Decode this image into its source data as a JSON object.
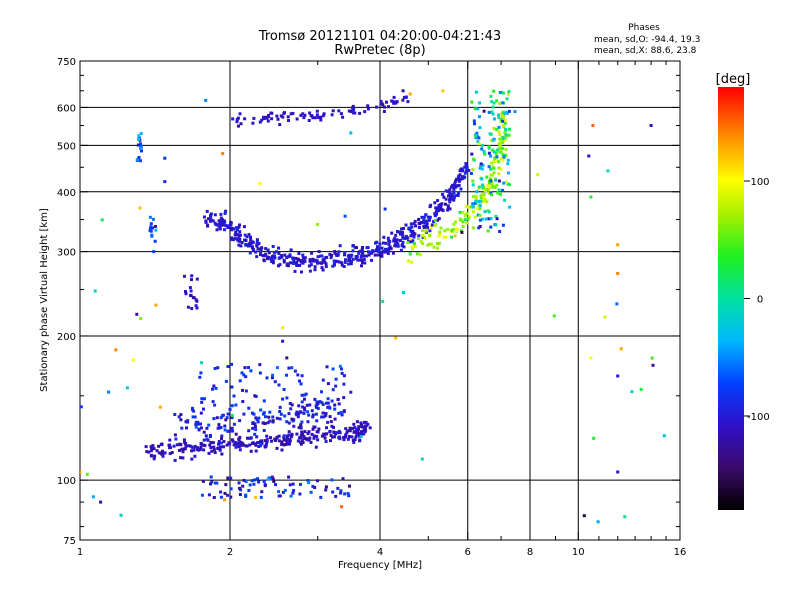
{
  "chart_data": {
    "type": "scatter",
    "title": "Tromsø 20121101 04:20:00-04:21:43",
    "subtitle": "RwPretec (8p)",
    "xlabel": "Frequency [MHz]",
    "ylabel": "Stationary phase Virtual Height [km]",
    "x_scale": "log",
    "y_scale": "log",
    "xlim": [
      1,
      16
    ],
    "ylim": [
      75,
      750
    ],
    "x_ticks": [
      1,
      2,
      4,
      6,
      8,
      10,
      16
    ],
    "x_gridlines": [
      2,
      4,
      6,
      8,
      10
    ],
    "y_ticks": [
      75,
      100,
      200,
      300,
      400,
      500,
      600,
      750
    ],
    "y_gridlines": [
      100,
      200,
      300,
      400,
      500,
      600
    ],
    "grid": true,
    "stats": {
      "heading": "Phases",
      "lines": [
        "mean, sd,O: -94.4, 19.3",
        "mean, sd,X:  88.6, 23.8"
      ]
    },
    "colorbar": {
      "label": "[deg]",
      "range": [
        -180,
        180
      ],
      "ticks": [
        100,
        0,
        -100
      ]
    },
    "clusters": [
      {
        "name": "F2-O trace",
        "n": 520,
        "type": "curve",
        "pts": [
          [
            1.78,
            350
          ],
          [
            1.9,
            345
          ],
          [
            2.05,
            330
          ],
          [
            2.2,
            310
          ],
          [
            2.4,
            295
          ],
          [
            2.6,
            288
          ],
          [
            2.8,
            285
          ],
          [
            3.0,
            287
          ],
          [
            3.3,
            290
          ],
          [
            3.6,
            295
          ],
          [
            3.9,
            300
          ],
          [
            4.2,
            310
          ],
          [
            4.5,
            322
          ],
          [
            4.8,
            338
          ],
          [
            5.1,
            355
          ],
          [
            5.4,
            380
          ],
          [
            5.7,
            410
          ],
          [
            5.95,
            450
          ]
        ],
        "yspread": 0.045,
        "phase": -103,
        "psd": 14
      },
      {
        "name": "F2-X trace",
        "n": 180,
        "type": "curve",
        "pts": [
          [
            4.6,
            305
          ],
          [
            5.0,
            318
          ],
          [
            5.4,
            332
          ],
          [
            5.8,
            348
          ],
          [
            6.1,
            365
          ],
          [
            6.3,
            382
          ],
          [
            6.6,
            402
          ],
          [
            6.8,
            430
          ],
          [
            7.0,
            470
          ],
          [
            7.1,
            520
          ],
          [
            7.05,
            580
          ]
        ],
        "yspread": 0.05,
        "phase": 70,
        "psd": 30
      },
      {
        "name": "upper trace",
        "n": 90,
        "type": "curve",
        "pts": [
          [
            2.0,
            560
          ],
          [
            2.3,
            570
          ],
          [
            2.6,
            572
          ],
          [
            3.0,
            575
          ],
          [
            3.4,
            585
          ],
          [
            3.8,
            595
          ],
          [
            4.2,
            605
          ],
          [
            4.6,
            625
          ]
        ],
        "yspread": 0.025,
        "phase": -108,
        "psd": 10
      },
      {
        "name": "cusp column",
        "n": 140,
        "type": "box",
        "x": [
          6.1,
          7.3
        ],
        "y": [
          330,
          650
        ],
        "phase": -10,
        "psd": 85
      },
      {
        "name": "E trace lower",
        "n": 300,
        "type": "curve",
        "pts": [
          [
            1.35,
            115
          ],
          [
            1.55,
            116
          ],
          [
            1.75,
            117
          ],
          [
            1.95,
            118
          ],
          [
            2.2,
            119
          ],
          [
            2.5,
            121
          ],
          [
            2.8,
            123
          ],
          [
            3.1,
            124
          ],
          [
            3.5,
            126
          ],
          [
            3.75,
            128
          ]
        ],
        "yspread": 0.035,
        "phase": -112,
        "psd": 12
      },
      {
        "name": "E trace upper",
        "n": 160,
        "type": "curve",
        "pts": [
          [
            1.55,
            132
          ],
          [
            1.8,
            130
          ],
          [
            2.1,
            129
          ],
          [
            2.4,
            132
          ],
          [
            2.7,
            136
          ],
          [
            3.0,
            140
          ],
          [
            3.4,
            145
          ]
        ],
        "yspread": 0.07,
        "phase": -95,
        "psd": 25
      },
      {
        "name": "E scatter",
        "n": 90,
        "type": "box",
        "x": [
          1.7,
          3.5
        ],
        "y": [
          135,
          175
        ],
        "phase": -90,
        "psd": 25
      },
      {
        "name": "low 100 km",
        "n": 80,
        "type": "box",
        "x": [
          1.75,
          3.5
        ],
        "y": [
          92,
          102
        ],
        "phase": -95,
        "psd": 45
      },
      {
        "name": "1.4 MHz column",
        "n": 14,
        "type": "box",
        "x": [
          1.38,
          1.42
        ],
        "y": [
          300,
          360
        ],
        "phase": -70,
        "psd": 30
      },
      {
        "name": "1.3 MHz column",
        "n": 18,
        "type": "box",
        "x": [
          1.3,
          1.33
        ],
        "y": [
          460,
          530
        ],
        "phase": -60,
        "psd": 40
      },
      {
        "name": "1.65 MHz cluster",
        "n": 18,
        "type": "box",
        "x": [
          1.62,
          1.72
        ],
        "y": [
          228,
          270
        ],
        "phase": -110,
        "psd": 12
      },
      {
        "name": "stray",
        "n": 40,
        "type": "box",
        "x": [
          1.0,
          15.0
        ],
        "y": [
          80,
          650
        ],
        "phase": 0,
        "psd": 110
      }
    ],
    "points": [
      [
        1.48,
        420,
        -90
      ],
      [
        1.48,
        470,
        -80
      ],
      [
        1.32,
        370,
        120
      ],
      [
        1.3,
        222,
        -110
      ],
      [
        1.42,
        232,
        130
      ],
      [
        1.18,
        187,
        140
      ],
      [
        1.28,
        178,
        100
      ],
      [
        1.45,
        142,
        130
      ],
      [
        1.1,
        90,
        -110
      ],
      [
        1.0,
        104,
        130
      ],
      [
        4.05,
        236,
        10
      ],
      [
        4.3,
        198,
        120
      ],
      [
        4.45,
        650,
        -120
      ],
      [
        4.6,
        640,
        130
      ],
      [
        5.35,
        650,
        120
      ],
      [
        2.55,
        208,
        110
      ],
      [
        2.55,
        195,
        -110
      ],
      [
        2.6,
        180,
        -130
      ],
      [
        10.5,
        475,
        -110
      ],
      [
        10.7,
        550,
        150
      ],
      [
        10.6,
        390,
        30
      ],
      [
        12.0,
        270,
        140
      ],
      [
        12.0,
        310,
        130
      ],
      [
        12.0,
        165,
        -100
      ],
      [
        12.2,
        188,
        130
      ],
      [
        10.6,
        180,
        100
      ],
      [
        12.0,
        104,
        -110
      ],
      [
        14.0,
        550,
        -110
      ],
      [
        3.35,
        88,
        150
      ],
      [
        2.25,
        92,
        120
      ],
      [
        1.95,
        91,
        130
      ]
    ]
  }
}
